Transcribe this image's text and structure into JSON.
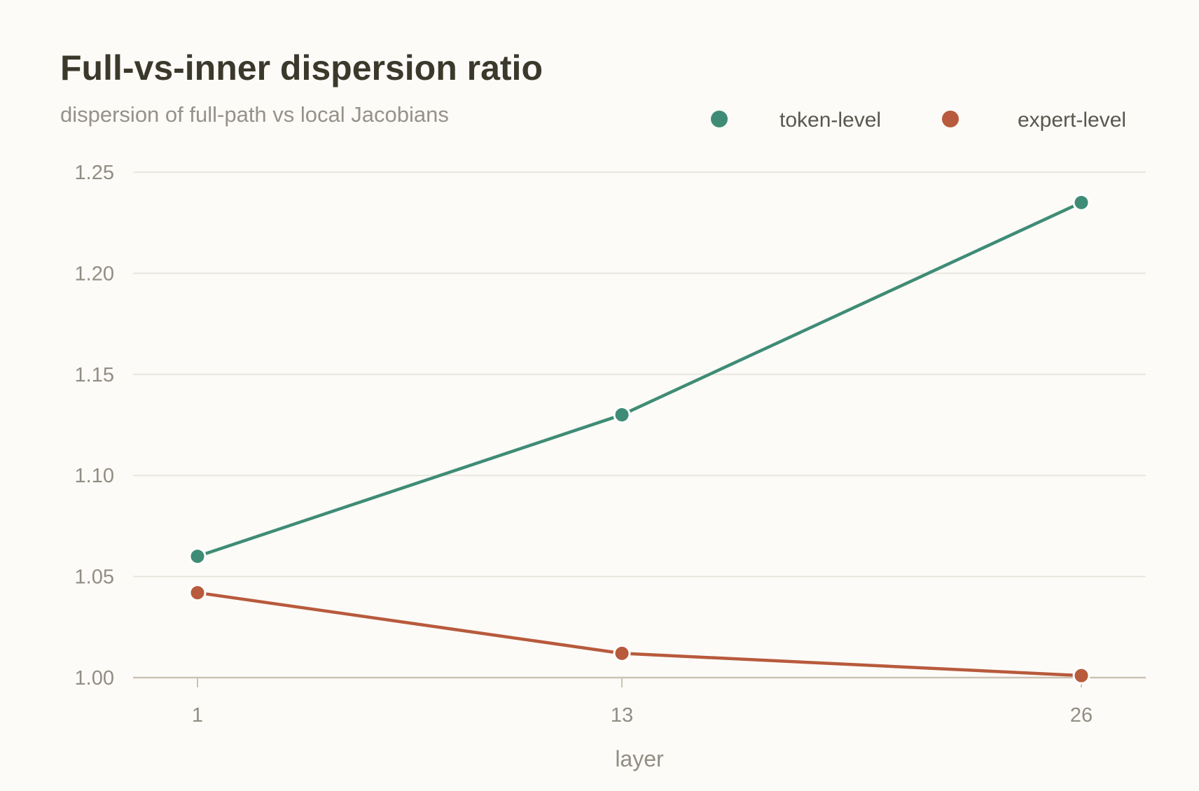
{
  "chart_data": {
    "type": "line",
    "title": "Full-vs-inner dispersion ratio",
    "subtitle": "dispersion of full-path vs local Jacobians",
    "xlabel": "layer",
    "ylabel": "",
    "x": [
      1,
      13,
      26
    ],
    "x_tick_labels": [
      "1",
      "13",
      "26"
    ],
    "y_ticks": [
      1.0,
      1.05,
      1.1,
      1.15,
      1.2,
      1.25
    ],
    "y_tick_labels": [
      "1.00",
      "1.05",
      "1.10",
      "1.15",
      "1.20",
      "1.25"
    ],
    "ylim": [
      1.0,
      1.25
    ],
    "grid": true,
    "legend_position": "top-right",
    "series": [
      {
        "name": "token-level",
        "color": "#3f8c76",
        "values": [
          1.06,
          1.13,
          1.235
        ]
      },
      {
        "name": "expert-level",
        "color": "#b85a3c",
        "values": [
          1.042,
          1.012,
          1.001
        ]
      }
    ]
  }
}
